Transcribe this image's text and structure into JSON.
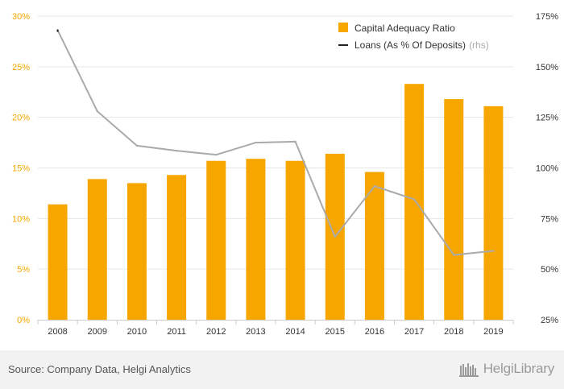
{
  "chart_data": {
    "type": "bar",
    "categories": [
      "2008",
      "2009",
      "2010",
      "2011",
      "2012",
      "2013",
      "2014",
      "2015",
      "2016",
      "2017",
      "2018",
      "2019"
    ],
    "series": [
      {
        "name": "Capital Adequacy Ratio",
        "type": "bar",
        "axis": "left",
        "color": "#F7A600",
        "values": [
          11.4,
          13.9,
          13.5,
          14.3,
          15.7,
          15.9,
          15.7,
          16.4,
          14.6,
          23.3,
          21.8,
          21.1
        ]
      },
      {
        "name": "Loans (As % Of Deposits)",
        "legend_suffix": "(rhs)",
        "type": "line",
        "axis": "right",
        "color": "#AAAAAA",
        "values": [
          168,
          128,
          111,
          108.5,
          106.5,
          112.5,
          113,
          66,
          91,
          84.5,
          57,
          59
        ]
      }
    ],
    "y_left": {
      "min": 0,
      "max": 30,
      "ticks": [
        0,
        5,
        10,
        15,
        20,
        25,
        30
      ],
      "tick_labels": [
        "0%",
        "5%",
        "10%",
        "15%",
        "20%",
        "25%",
        "30%"
      ]
    },
    "y_right": {
      "min": 25,
      "max": 175,
      "ticks": [
        25,
        50,
        75,
        100,
        125,
        150,
        175
      ],
      "tick_labels": [
        "25%",
        "50%",
        "75%",
        "100%",
        "125%",
        "150%",
        "175%"
      ]
    },
    "grid": true,
    "legend_position": "top-right",
    "axis_label_color": "#F7A600"
  },
  "footer": {
    "source": "Source: Company Data, Helgi Analytics",
    "brand": "HelgiLibrary"
  }
}
